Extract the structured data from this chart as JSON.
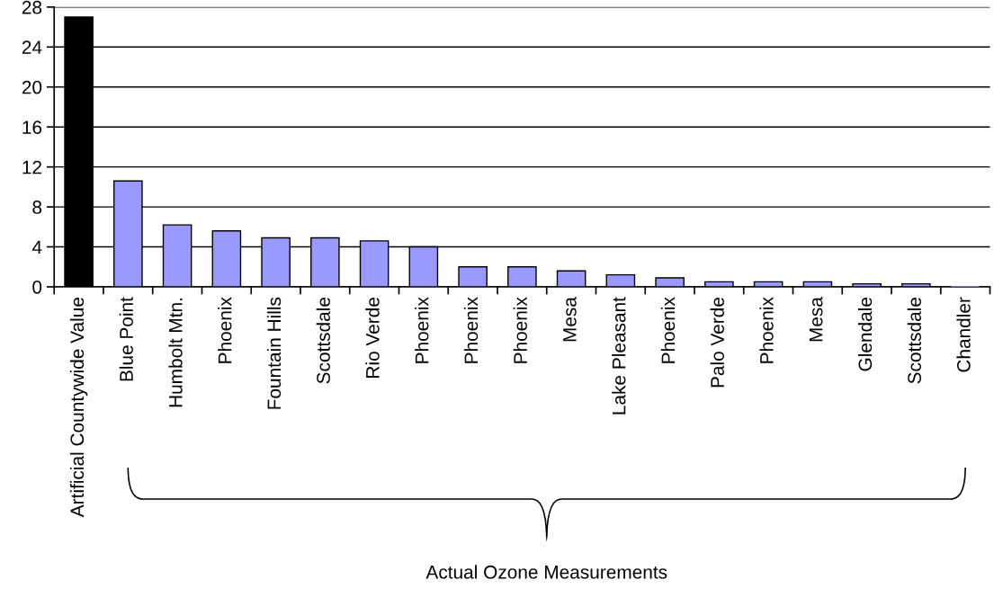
{
  "chart_data": {
    "type": "bar",
    "categories": [
      "Artificial Countywide Value",
      "Blue Point",
      "Humbolt Mtn.",
      "Phoenix",
      "Fountain Hills",
      "Scottsdale",
      "Rio Verde",
      "Phoenix",
      "Phoenix",
      "Phoenix",
      "Mesa",
      "Lake Pleasant",
      "Phoenix",
      "Palo Verde",
      "Phoenix",
      "Mesa",
      "Glendale",
      "Scottsdale",
      "Chandler"
    ],
    "values": [
      27,
      10.6,
      6.2,
      5.6,
      4.9,
      4.9,
      4.6,
      4.0,
      2.0,
      2.0,
      1.6,
      1.2,
      0.9,
      0.5,
      0.5,
      0.5,
      0.3,
      0.3,
      0
    ],
    "colors": [
      "#000000",
      "#9999ff",
      "#9999ff",
      "#9999ff",
      "#9999ff",
      "#9999ff",
      "#9999ff",
      "#9999ff",
      "#9999ff",
      "#9999ff",
      "#9999ff",
      "#9999ff",
      "#9999ff",
      "#9999ff",
      "#9999ff",
      "#9999ff",
      "#9999ff",
      "#9999ff",
      "#9999ff"
    ],
    "ylim": [
      0,
      28
    ],
    "yticks": [
      0,
      4,
      8,
      12,
      16,
      20,
      24,
      28
    ],
    "grid": "y",
    "annotations": [
      "Actual Ozone Measurements"
    ]
  }
}
